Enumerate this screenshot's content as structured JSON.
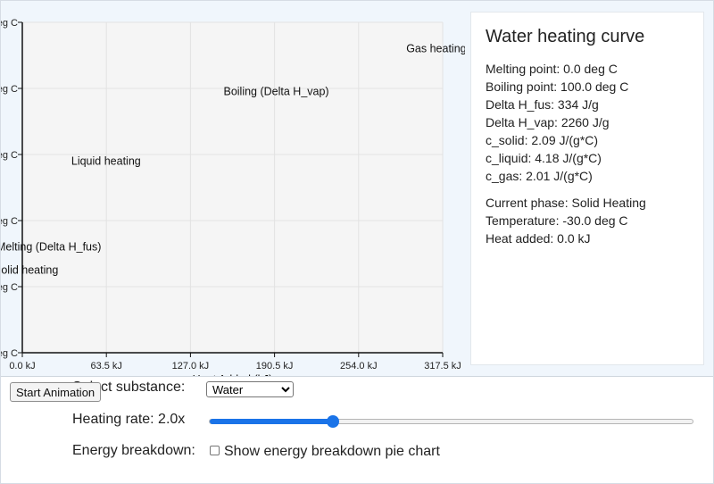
{
  "chart_data": {
    "type": "line",
    "title": "",
    "xlabel": "Heat Added (kJ)",
    "ylabel": "",
    "x_ticks": [
      "0.0 kJ",
      "63.5 kJ",
      "127.0 kJ",
      "190.5 kJ",
      "254.0 kJ",
      "317.5 kJ"
    ],
    "x_tick_values": [
      0,
      63.5,
      127,
      190.5,
      254,
      317.5
    ],
    "y_ticks": [
      "eg C",
      "eg C",
      "eg C",
      "eg C",
      "eg C",
      "eg C"
    ],
    "xlim": [
      0,
      317.5
    ],
    "grid": true,
    "series": [],
    "annotations": [
      {
        "text": "Solid heating",
        "x": 0,
        "y_rank": 1.25
      },
      {
        "text": "Melting (Delta H_fus)",
        "x": 0,
        "y_rank": 1.6
      },
      {
        "text": "Liquid heating",
        "x": 37,
        "y_rank": 2.9
      },
      {
        "text": "Boiling (Delta H_vap)",
        "x": 152,
        "y_rank": 3.95
      },
      {
        "text": "Gas heating",
        "x": 290,
        "y_rank": 4.6
      }
    ]
  },
  "info": {
    "title": "Water heating curve",
    "properties": [
      "Melting point: 0.0 deg C",
      "Boiling point: 100.0 deg C",
      "Delta H_fus: 334 J/g",
      "Delta H_vap: 2260 J/g",
      "c_solid: 2.09 J/(g*C)",
      "c_liquid: 4.18 J/(g*C)",
      "c_gas: 2.01 J/(g*C)"
    ],
    "current_phase": "Current phase: Solid Heating",
    "temperature": "Temperature: -30.0 deg C",
    "heat_added": "Heat added: 0.0 kJ"
  },
  "controls": {
    "start_label": "Start Animation",
    "substance_label": "Select substance:",
    "substance_selected": "Water",
    "rate_label": "Heating rate: 2.0x",
    "rate_fraction": 0.255,
    "energy_label": "Energy breakdown:",
    "energy_checkbox_label": "Show energy breakdown pie chart",
    "energy_checked": false
  },
  "colors": {
    "accent": "#1a73e8",
    "plot_bg": "#f5f5f5",
    "panel_bg": "#f0f6fc"
  }
}
